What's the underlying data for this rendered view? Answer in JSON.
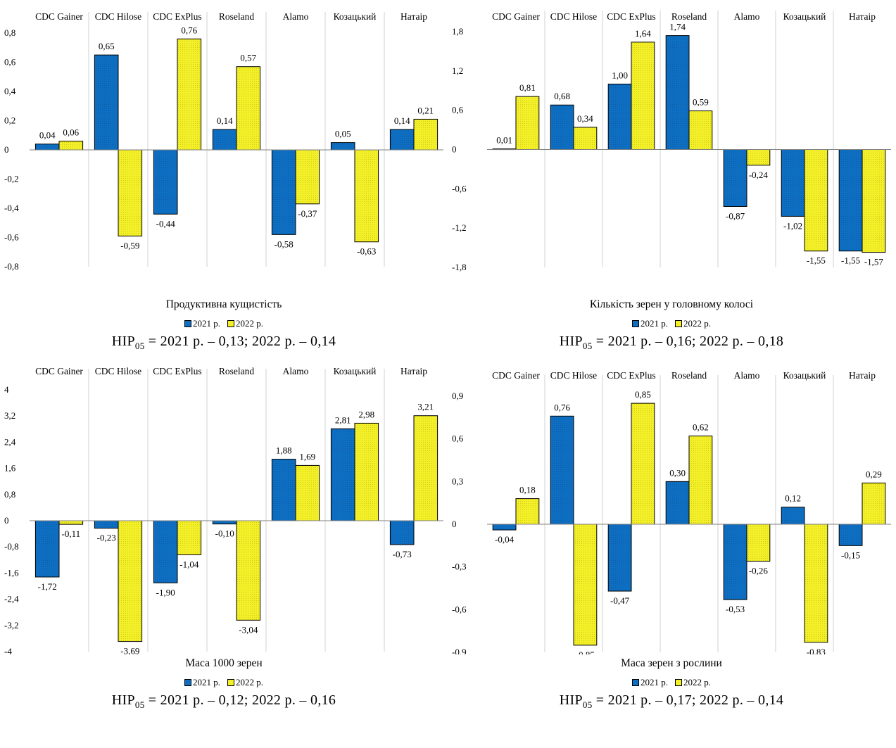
{
  "legend": {
    "s1": "2021 р.",
    "s2": "2022 р."
  },
  "colors": {
    "s1": "#0e6fc2",
    "s2": "#f3f02a"
  },
  "chart_data": [
    {
      "type": "bar",
      "title": "Продуктивна кущистість",
      "categories": [
        "CDC Gainer",
        "CDC Hilose",
        "CDC ExPlus",
        "Roseland",
        "Alamo",
        "Козацький",
        "Натаір"
      ],
      "series": [
        {
          "name": "2021 р.",
          "values": [
            0.04,
            0.65,
            -0.44,
            0.14,
            -0.58,
            0.05,
            0.14
          ],
          "labels": [
            "0,04",
            "0,65",
            "-0,44",
            "0,14",
            "-0,58",
            "0,05",
            "0,14"
          ]
        },
        {
          "name": "2022 р.",
          "values": [
            0.06,
            -0.59,
            0.76,
            0.57,
            -0.37,
            -0.63,
            0.21
          ],
          "labels": [
            "0,06",
            "-0,59",
            "0,76",
            "0,57",
            "-0,37",
            "-0,63",
            "0,21"
          ]
        }
      ],
      "ylim": [
        -0.8,
        0.8
      ],
      "yticks": [
        0.8,
        0.6,
        0.4,
        0.2,
        0,
        -0.2,
        -0.4,
        -0.6,
        -0.8
      ],
      "ytick_labels": [
        "0,8",
        "0,6",
        "0,4",
        "0,2",
        "0",
        "-0,2",
        "-0,4",
        "-0,6",
        "-0,8"
      ],
      "nir": {
        "prefix": "НІР",
        "sub": "05",
        "text": " = 2021 р. – 0,13; 2022 р. – 0,14"
      },
      "legend": "bottom"
    },
    {
      "type": "bar",
      "title": "Кількість зерен у головному колосі",
      "categories": [
        "CDC Gainer",
        "CDC Hilose",
        "CDC ExPlus",
        "Roseland",
        "Alamo",
        "Козацький",
        "Натаір"
      ],
      "series": [
        {
          "name": "2021 р.",
          "values": [
            0.01,
            0.68,
            1.0,
            1.74,
            -0.87,
            -1.02,
            -1.55
          ],
          "labels": [
            "0,01",
            "0,68",
            "1,00",
            "1,74",
            "-0,87",
            "-1,02",
            "-1,55"
          ]
        },
        {
          "name": "2022 р.",
          "values": [
            0.81,
            0.34,
            1.64,
            0.59,
            -0.24,
            -1.55,
            -1.57
          ],
          "labels": [
            "0,81",
            "0,34",
            "1,64",
            "0,59",
            "-0,24",
            "-1,55",
            "-1,57"
          ]
        }
      ],
      "ylim": [
        -1.8,
        1.8
      ],
      "yticks": [
        1.8,
        1.2,
        0.6,
        0,
        -0.6,
        -1.2,
        -1.8
      ],
      "ytick_labels": [
        "1,8",
        "1,2",
        "0,6",
        "0",
        "-0,6",
        "-1,2",
        "-1,8"
      ],
      "nir": {
        "prefix": "НІР",
        "sub": "05",
        "text": " = 2021 р. – 0,16; 2022 р. – 0,18"
      },
      "legend": "bottom"
    },
    {
      "type": "bar",
      "title": "Маса 1000 зерен",
      "categories": [
        "CDC Gainer",
        "CDC Hilose",
        "CDC ExPlus",
        "Roseland",
        "Alamo",
        "Козацький",
        "Натаір"
      ],
      "series": [
        {
          "name": "2021 р.",
          "values": [
            -1.72,
            -0.23,
            -1.9,
            -0.1,
            1.88,
            2.81,
            -0.73
          ],
          "labels": [
            "-1,72",
            "-0,23",
            "-1,90",
            "-0,10",
            "1,88",
            "2,81",
            "-0,73"
          ]
        },
        {
          "name": "2022 р.",
          "values": [
            -0.11,
            -3.69,
            -1.04,
            -3.04,
            1.69,
            2.98,
            3.21
          ],
          "labels": [
            "-0,11",
            "-3,69",
            "-1,04",
            "-3,04",
            "1,69",
            "2,98",
            "3,21"
          ]
        }
      ],
      "ylim": [
        -4,
        4
      ],
      "yticks": [
        4,
        3.2,
        2.4,
        1.6,
        0.8,
        0,
        -0.8,
        -1.6,
        -2.4,
        -3.2,
        -4
      ],
      "ytick_labels": [
        "4",
        "3,2",
        "2,4",
        "1,6",
        "0,8",
        "0",
        "-0,8",
        "-1,6",
        "-2,4",
        "-3,2",
        "-4"
      ],
      "nir": {
        "prefix": "НІР",
        "sub": "05",
        "text": " = 2021 р. – 0,12; 2022 р. – 0,16"
      },
      "legend": "bottom"
    },
    {
      "type": "bar",
      "title": "Маса зерен з рослини",
      "categories": [
        "CDC Gainer",
        "CDC Hilose",
        "CDC ExPlus",
        "Roseland",
        "Alamo",
        "Козацький",
        "Натаір"
      ],
      "series": [
        {
          "name": "2021 р.",
          "values": [
            -0.04,
            0.76,
            -0.47,
            0.3,
            -0.53,
            0.12,
            -0.15
          ],
          "labels": [
            "-0,04",
            "0,76",
            "-0,47",
            "0,30",
            "-0,53",
            "0,12",
            "-0,15"
          ]
        },
        {
          "name": "2022 р.",
          "values": [
            0.18,
            -0.85,
            0.85,
            0.62,
            -0.26,
            -0.83,
            0.29
          ],
          "labels": [
            "0,18",
            "-0,85",
            "0,85",
            "0,62",
            "-0,26",
            "-0,83",
            "0,29"
          ]
        }
      ],
      "ylim": [
        -0.9,
        0.9
      ],
      "yticks": [
        0.9,
        0.6,
        0.3,
        0,
        -0.3,
        -0.6,
        -0.9
      ],
      "ytick_labels": [
        "0,9",
        "0,6",
        "0,3",
        "0",
        "-0,3",
        "-0,6",
        "-0,9"
      ],
      "nir": {
        "prefix": "НІР",
        "sub": "05",
        "text": " = 2021 р. – 0,17; 2022 р. – 0,14"
      },
      "legend": "bottom"
    }
  ]
}
